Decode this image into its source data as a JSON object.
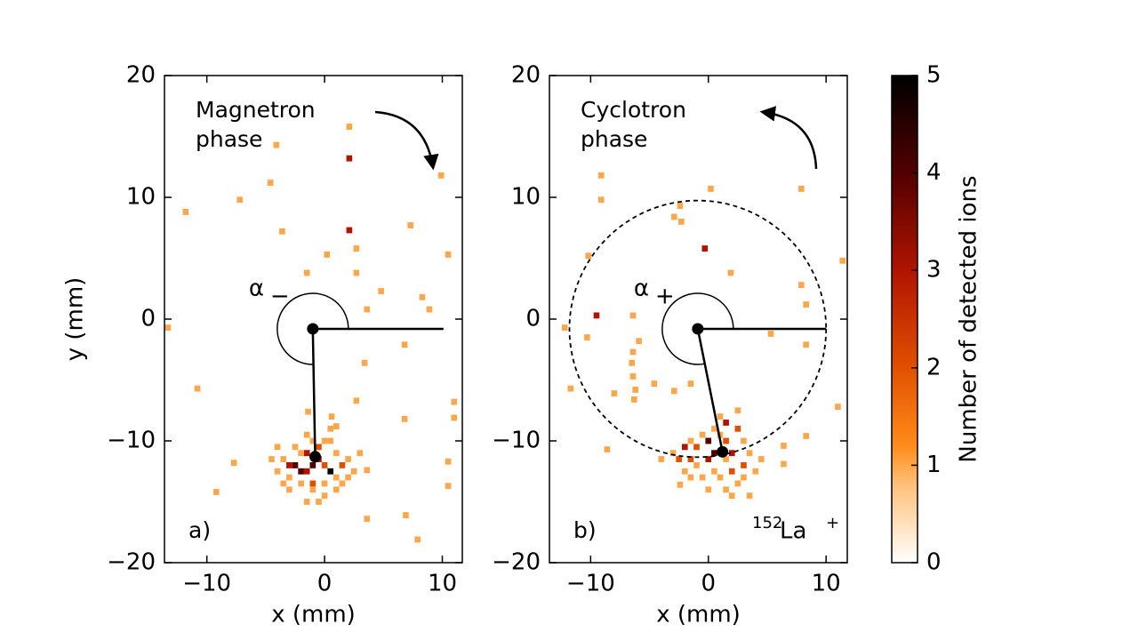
{
  "chart_data": [
    {
      "type": "heatmap",
      "panel_label": "a)",
      "annotation_lines": [
        "Magnetron",
        "phase"
      ],
      "angle_label": "α",
      "angle_subscript": "−",
      "xlabel": "x (mm)",
      "ylabel": "y (mm)",
      "xlim": [
        -13.6,
        11.7
      ],
      "ylim": [
        -20,
        20
      ],
      "xticks": [
        {
          "value": -10,
          "label": "−10"
        },
        0,
        10
      ],
      "yticks": [
        {
          "value": -20,
          "label": "−20"
        },
        {
          "value": -10,
          "label": "−10"
        },
        0,
        10,
        20
      ],
      "bin_size": 0.5,
      "x": [
        2.1,
        2.1,
        -4.1,
        -4.6,
        9.9,
        -11.8,
        -7.2,
        -3.6,
        2.1,
        2.7,
        0.2,
        7.3,
        10.5,
        -1.5,
        2.7,
        4.8,
        8.3,
        3.6,
        8.9,
        -13.3,
        6.8,
        3.4,
        -10.8,
        2.7,
        -1.4,
        0.6,
        6.8,
        11.0,
        11.0,
        1.0,
        -7.7,
        -9.2,
        3.6,
        10.5,
        10.5,
        3.6,
        6.9,
        7.9,
        -1.0,
        0,
        -0.5,
        -1.5,
        -2.5,
        -3.0,
        -2.0,
        -1.0,
        -0.5,
        0.0,
        0.5,
        -1.5,
        1.0,
        2.0,
        2.5,
        3.0,
        -3.5,
        -4.0,
        -4.5,
        -3.0,
        -2.0,
        -1.0,
        0.0,
        1.0,
        1.5,
        -2.5,
        -1.5,
        0.5,
        -4.0,
        -1.0,
        -1.5,
        1.0,
        2.0,
        -3.5,
        0.5,
        -2.0,
        1.5,
        -3.0,
        0.0,
        -0.5
      ],
      "y": [
        15.8,
        13.2,
        14.3,
        11.2,
        11.8,
        8.8,
        9.8,
        7.2,
        7.3,
        5.8,
        5.3,
        7.7,
        5.3,
        3.8,
        3.8,
        2.3,
        1.8,
        0.8,
        0.8,
        -0.7,
        -2.1,
        -3.6,
        -5.7,
        -6.7,
        -7.6,
        -8.0,
        -8.2,
        -6.8,
        -8.1,
        -8.8,
        -11.8,
        -14.2,
        -12.4,
        -11.7,
        -13.7,
        -16.4,
        -16.1,
        -18.1,
        -10.0,
        -10.0,
        -10.5,
        -11.0,
        -12.0,
        -12.0,
        -12.5,
        -12.0,
        -11.5,
        -12.0,
        -12.5,
        -12.5,
        -11.0,
        -11.5,
        -12.5,
        -11.0,
        -11.5,
        -12.5,
        -11.5,
        -13.0,
        -13.5,
        -13.5,
        -13.5,
        -13.0,
        -13.5,
        -10.5,
        -9.5,
        -9.0,
        -10.5,
        -14.0,
        -15.0,
        -14.0,
        -13.0,
        -13.5,
        -10.0,
        -11.0,
        -12.0,
        -14.0,
        -14.5,
        -15.0
      ],
      "values": [
        1,
        3,
        1,
        1,
        1,
        1,
        1,
        1,
        3,
        1,
        1,
        1,
        1,
        1,
        1,
        1,
        1,
        1,
        1,
        1,
        1,
        1,
        1,
        1,
        1,
        1,
        1,
        1,
        1,
        1,
        1,
        1,
        1,
        1,
        1,
        1,
        1,
        1,
        1,
        1,
        2,
        3,
        4,
        3,
        4,
        4,
        3,
        2,
        5,
        3,
        1,
        1,
        1,
        1,
        1,
        1,
        1,
        1,
        1,
        2,
        1,
        1,
        1,
        1,
        1,
        1,
        1,
        1,
        1,
        1,
        1,
        1,
        1,
        1,
        2,
        1,
        1,
        1
      ],
      "center": [
        -1.0,
        -0.8
      ],
      "end": [
        -0.8,
        -11.3
      ],
      "reference_end": [
        10.1,
        -0.8
      ]
    },
    {
      "type": "heatmap",
      "panel_label": "b)",
      "annotation_lines": [
        "Cyclotron",
        "phase"
      ],
      "angle_label": "α",
      "angle_subscript": "+",
      "isotope": {
        "mass": "152",
        "element": "La",
        "charge": "+"
      },
      "xlabel": "x (mm)",
      "xlim": [
        -13.5,
        11.8
      ],
      "ylim": [
        -20,
        20
      ],
      "xticks": [
        {
          "value": -10,
          "label": "−10"
        },
        0,
        10
      ],
      "yticks": [
        {
          "value": -20,
          "label": "−20"
        },
        {
          "value": -10,
          "label": "−10"
        },
        0,
        10,
        20
      ],
      "bin_size": 0.5,
      "x": [
        -9.1,
        -9.1,
        0.2,
        7.9,
        -2.4,
        -2.9,
        -2.3,
        -0.3,
        1.9,
        -10.2,
        7.9,
        11.4,
        -9.5,
        -6.4,
        8.3,
        -12.2,
        -10.3,
        -5.9,
        -6.4,
        5.3,
        8.3,
        -6.5,
        -6.4,
        -11.7,
        -8.0,
        -4.6,
        -6.2,
        -6.3,
        -2.9,
        -1.5,
        11.0,
        8.3,
        -8.6,
        -4.0,
        6.4,
        6.4,
        -2.4,
        1.0,
        2.5,
        1.5,
        2.5,
        0.5,
        -0.5,
        1.0,
        -1.5,
        0.0,
        1.5,
        3.0,
        -2.0,
        -1.0,
        0.5,
        2.0,
        3.5,
        -1.5,
        -2.5,
        0.0,
        1.5,
        3.0,
        -1.0,
        0.5,
        2.0,
        4.0,
        -0.5,
        1.0,
        2.5,
        1.5,
        3.0,
        0.0,
        -1.5,
        4.5,
        -3.0,
        2.0,
        3.5,
        -2.0
      ],
      "y": [
        11.8,
        9.8,
        10.7,
        10.7,
        9.3,
        8.4,
        8.0,
        5.8,
        3.8,
        5.2,
        2.8,
        4.8,
        0.3,
        0.3,
        1.2,
        -0.7,
        -1.5,
        -1.8,
        -2.7,
        -1.2,
        -2.1,
        -3.6,
        -4.7,
        -5.7,
        -6.1,
        -5.3,
        -5.8,
        -6.6,
        -5.9,
        -5.3,
        -7.2,
        -9.6,
        -10.7,
        -11.5,
        -10.4,
        -11.9,
        -13.6,
        -8.0,
        -7.5,
        -8.5,
        -9.0,
        -9.0,
        -9.5,
        -9.5,
        -10.0,
        -10.0,
        -10.0,
        -10.0,
        -10.5,
        -10.5,
        -11.0,
        -11.0,
        -11.0,
        -11.5,
        -11.5,
        -11.5,
        -11.5,
        -12.0,
        -12.0,
        -12.5,
        -12.5,
        -12.5,
        -13.0,
        -13.0,
        -13.5,
        -14.0,
        -13.0,
        -14.0,
        -13.0,
        -11.5,
        -11.0,
        -14.5,
        -14.5,
        -12.5
      ],
      "values": [
        1,
        1,
        1,
        1,
        1,
        1,
        1,
        3,
        1,
        1,
        1,
        1,
        3,
        1,
        1,
        1,
        1,
        1,
        1,
        1,
        1,
        1,
        1,
        1,
        1,
        1,
        1,
        1,
        1,
        1,
        1,
        1,
        1,
        1,
        1,
        1,
        1,
        1,
        1,
        3,
        2,
        1,
        1,
        1,
        1,
        4,
        2,
        1,
        3,
        2,
        4,
        3,
        1,
        2,
        2,
        3,
        1,
        2,
        1,
        1,
        2,
        1,
        1,
        1,
        1,
        1,
        1,
        1,
        1,
        1,
        1,
        1,
        1,
        1
      ],
      "center": [
        -0.9,
        -0.8
      ],
      "end": [
        1.2,
        -10.9
      ],
      "reference_end": [
        10.0,
        -0.8
      ],
      "circle_radius": 10.9
    }
  ],
  "colorbar": {
    "label": "Number of detected ions",
    "lim": [
      0,
      5
    ],
    "ticks": [
      0,
      1,
      2,
      3,
      4,
      5
    ],
    "colormap": [
      {
        "value": 0,
        "color": "#ffffff"
      },
      {
        "value": 0.8,
        "color": "#ffc07a"
      },
      {
        "value": 1.2,
        "color": "#ff8c1a"
      },
      {
        "value": 2,
        "color": "#e05000"
      },
      {
        "value": 3,
        "color": "#b01400"
      },
      {
        "value": 4,
        "color": "#520000"
      },
      {
        "value": 5,
        "color": "#000000"
      }
    ]
  }
}
